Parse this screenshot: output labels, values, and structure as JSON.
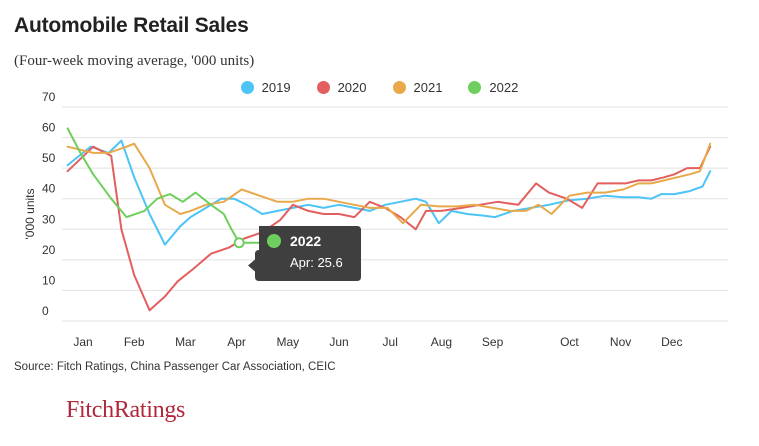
{
  "chart_data": {
    "type": "line",
    "title": "Automobile Retail Sales",
    "subtitle": "(Four-week moving average, '000 units)",
    "ylabel": "'000 units",
    "xlabel": "",
    "ylim": [
      0,
      70
    ],
    "yticks": [
      "0",
      "10",
      "20",
      "30",
      "40",
      "50",
      "60",
      "70"
    ],
    "month_labels": [
      "Jan",
      "Feb",
      "Mar",
      "Apr",
      "May",
      "Jun",
      "Jul",
      "Aug",
      "Sep",
      "Oct",
      "Nov",
      "Dec"
    ],
    "month_positions": [
      0,
      1,
      2,
      3,
      4,
      5,
      6,
      7,
      8,
      9.5,
      10.5,
      11.5
    ],
    "grid": true,
    "legend_position": "top-center",
    "series": [
      {
        "name": "2019",
        "color": "#4cc4f5",
        "x": [
          -0.3,
          0.15,
          0.5,
          0.75,
          1.0,
          1.3,
          1.6,
          1.9,
          2.1,
          2.4,
          2.7,
          2.95,
          3.2,
          3.5,
          3.8,
          4.1,
          4.4,
          4.7,
          5.0,
          5.3,
          5.6,
          5.9,
          6.2,
          6.5,
          6.7,
          6.95,
          7.2,
          7.5,
          7.8,
          8.05,
          8.4,
          8.75,
          9.1,
          9.5,
          9.85,
          10.2,
          10.55,
          10.85,
          11.1,
          11.3,
          11.55,
          11.85,
          12.1,
          12.25
        ],
        "y": [
          51,
          57,
          55,
          59,
          47,
          35,
          25,
          31,
          34,
          37,
          40,
          40,
          38,
          35,
          36,
          37,
          38,
          37,
          38,
          37,
          36,
          38,
          39,
          40,
          39,
          32,
          36,
          35,
          34.5,
          34,
          36,
          37,
          38,
          39.5,
          40,
          41,
          40.5,
          40.5,
          40,
          41.5,
          41.5,
          42.5,
          44,
          49
        ]
      },
      {
        "name": "2020",
        "color": "#e35f5f",
        "x": [
          -0.3,
          0.2,
          0.55,
          0.75,
          1.0,
          1.3,
          1.6,
          1.85,
          2.15,
          2.5,
          2.85,
          3.15,
          3.5,
          3.85,
          4.1,
          4.4,
          4.7,
          5.0,
          5.3,
          5.6,
          5.9,
          6.2,
          6.5,
          6.7,
          7.0,
          7.4,
          7.75,
          8.1,
          8.5,
          8.85,
          9.1,
          9.45,
          9.75,
          10.05,
          10.35,
          10.6,
          10.85,
          11.1,
          11.35,
          11.55,
          11.8,
          12.05,
          12.25
        ],
        "y": [
          49,
          57,
          54,
          30,
          15,
          3.5,
          8,
          13,
          17,
          22,
          24,
          27,
          29,
          33,
          38,
          36,
          35,
          35,
          34,
          39,
          37,
          34,
          30,
          36,
          36,
          37,
          38,
          39,
          38,
          45,
          42,
          40,
          37,
          45,
          45,
          45,
          46,
          46,
          47,
          48,
          50,
          50,
          57
        ]
      },
      {
        "name": "2021",
        "color": "#e8a94b",
        "x": [
          -0.3,
          0.2,
          0.5,
          0.85,
          1.0,
          1.3,
          1.6,
          1.9,
          2.1,
          2.4,
          2.75,
          3.1,
          3.45,
          3.8,
          4.1,
          4.4,
          4.7,
          5.0,
          5.3,
          5.6,
          5.95,
          6.25,
          6.6,
          6.95,
          7.3,
          7.65,
          8.0,
          8.35,
          8.65,
          8.9,
          9.15,
          9.5,
          9.85,
          10.2,
          10.55,
          10.85,
          11.1,
          11.35,
          11.6,
          11.85,
          12.05,
          12.25
        ],
        "y": [
          57,
          55,
          55,
          57,
          58,
          50,
          38,
          35,
          36,
          38,
          39,
          43,
          41,
          39,
          39,
          40,
          40,
          39,
          38,
          37,
          37,
          32,
          38,
          37.5,
          37.5,
          38,
          37,
          36,
          36,
          38,
          35,
          41,
          42,
          42,
          43,
          45,
          45,
          46,
          47,
          48,
          49,
          58
        ]
      },
      {
        "name": "2022",
        "color": "#6fcf5e",
        "x": [
          -0.3,
          -0.05,
          0.2,
          0.55,
          0.85,
          1.2,
          1.45,
          1.7,
          1.95,
          2.2,
          2.5,
          2.75,
          2.9,
          3.05,
          3.3,
          3.45
        ],
        "y": [
          63,
          55,
          48,
          40,
          34,
          36,
          40,
          41.5,
          39,
          42,
          38,
          35,
          30,
          25.6,
          25.6,
          25.6
        ]
      }
    ],
    "tooltip": {
      "series": "2022",
      "label": "Apr: 25.6"
    }
  },
  "footer": {
    "source": "Source: Fitch Ratings, China Passenger Car Association, CEIC",
    "logo": "FitchRatings"
  }
}
